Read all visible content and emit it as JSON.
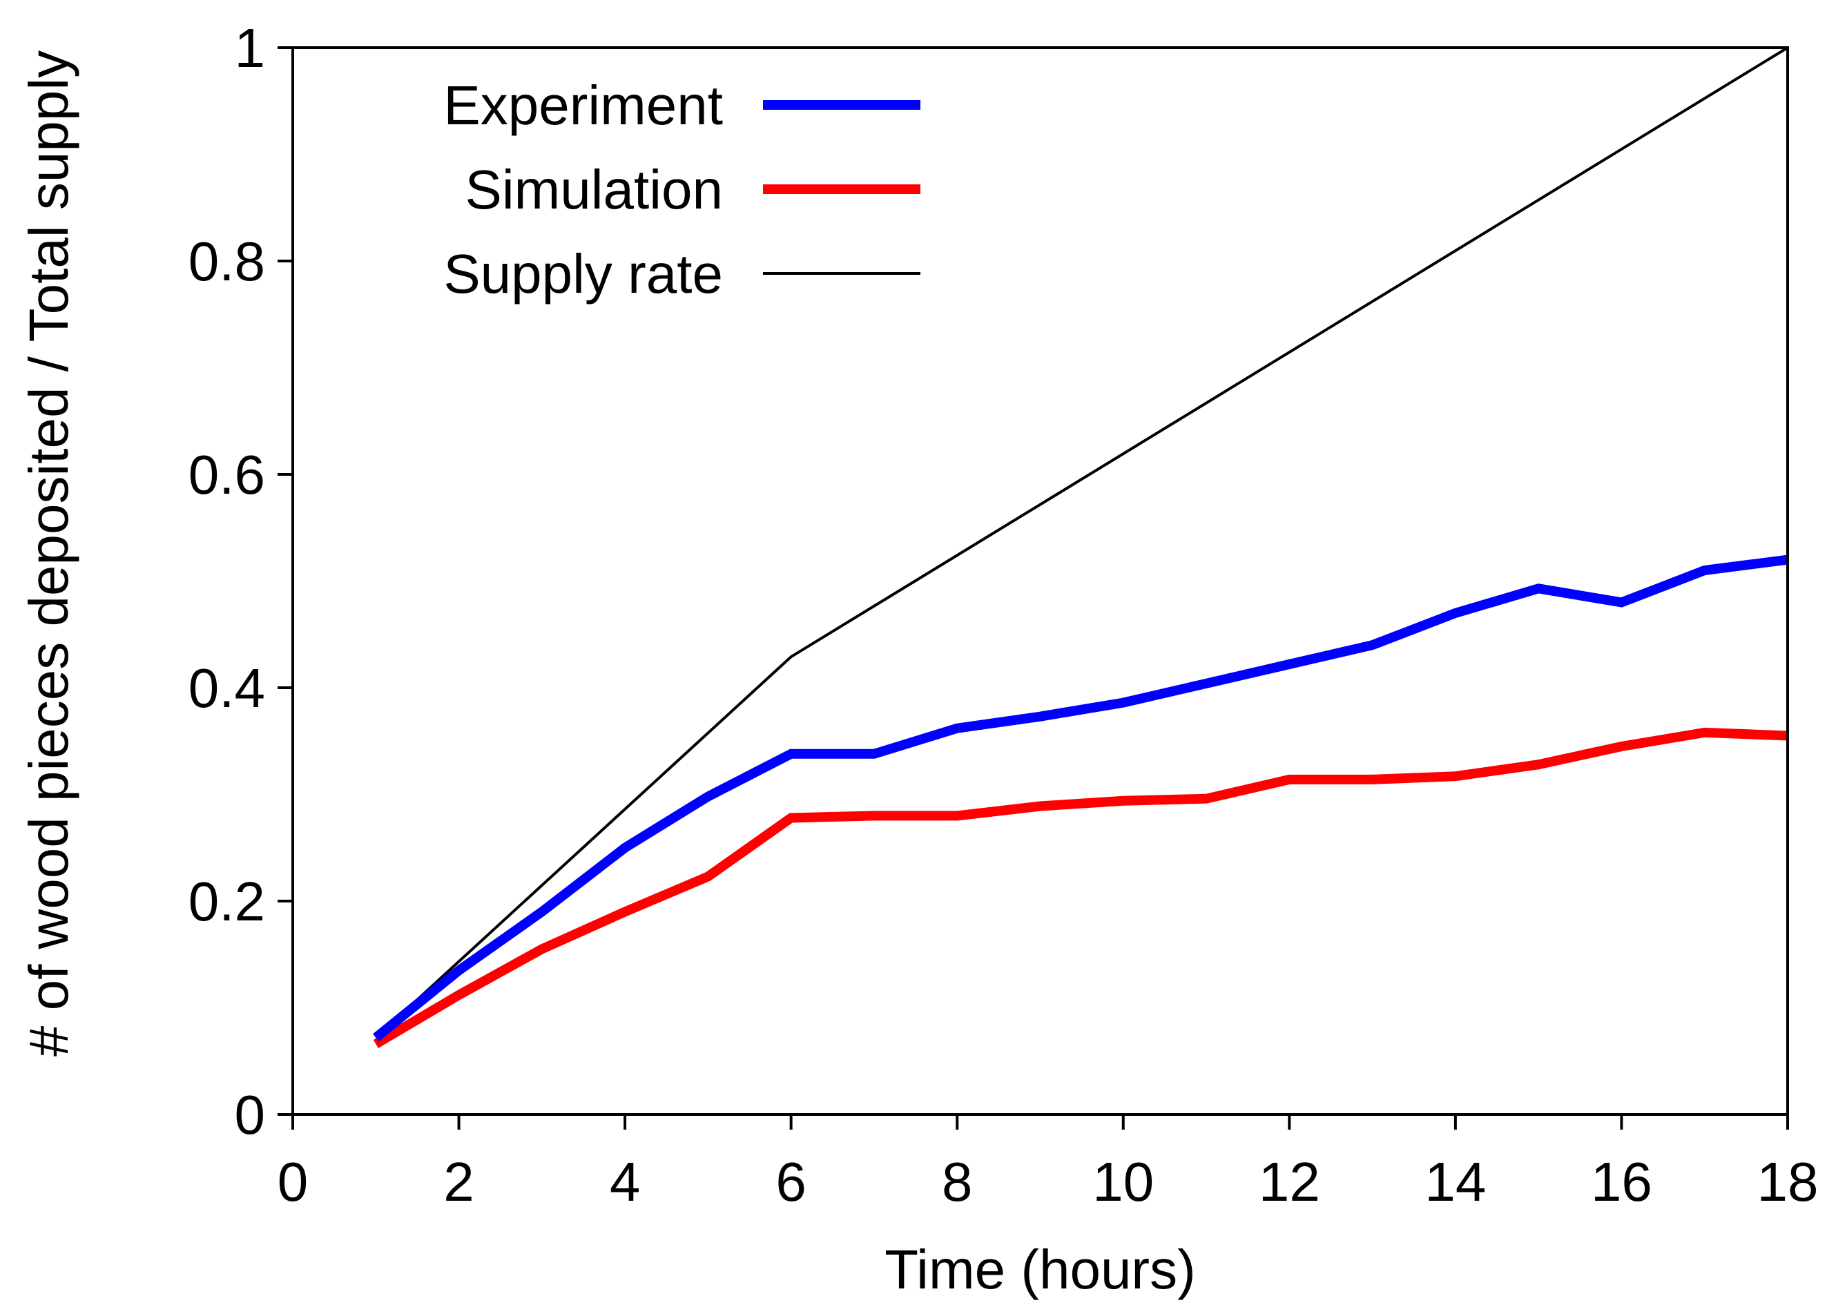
{
  "chart_data": {
    "type": "line",
    "title": "",
    "xlabel": "Time (hours)",
    "ylabel": "# of wood pieces deposited / Total supply",
    "xlim": [
      0,
      18
    ],
    "ylim": [
      0,
      1
    ],
    "xticks": [
      0,
      2,
      4,
      6,
      8,
      10,
      12,
      14,
      16,
      18
    ],
    "yticks": [
      0,
      0.2,
      0.4,
      0.6,
      0.8,
      1
    ],
    "xtick_labels": [
      "0",
      "2",
      "4",
      "6",
      "8",
      "10",
      "12",
      "14",
      "16",
      "18"
    ],
    "ytick_labels": [
      "0",
      "0.2",
      "0.4",
      "0.6",
      "0.8",
      "1"
    ],
    "grid": false,
    "legend_position": "top-left",
    "series": [
      {
        "name": "Experiment",
        "color": "#0000ff",
        "style": "thick",
        "x": [
          1,
          2,
          3,
          4,
          5,
          6,
          7,
          8,
          9,
          10,
          11,
          12,
          13,
          14,
          15,
          16,
          17,
          18
        ],
        "values": [
          0.072,
          0.135,
          0.19,
          0.25,
          0.298,
          0.338,
          0.338,
          0.362,
          0.373,
          0.386,
          0.404,
          0.422,
          0.44,
          0.47,
          0.493,
          0.48,
          0.51,
          0.52
        ]
      },
      {
        "name": "Simulation",
        "color": "#ff0000",
        "style": "thick",
        "x": [
          1,
          2,
          3,
          4,
          5,
          6,
          7,
          8,
          9,
          10,
          11,
          12,
          13,
          14,
          15,
          16,
          17,
          18
        ],
        "values": [
          0.066,
          0.112,
          0.155,
          0.19,
          0.223,
          0.278,
          0.28,
          0.28,
          0.289,
          0.294,
          0.296,
          0.314,
          0.314,
          0.317,
          0.328,
          0.345,
          0.358,
          0.355
        ]
      },
      {
        "name": "Supply rate",
        "color": "#000000",
        "style": "thin",
        "x": [
          1,
          6,
          18
        ],
        "values": [
          0.072,
          0.429,
          1.0
        ]
      }
    ]
  }
}
